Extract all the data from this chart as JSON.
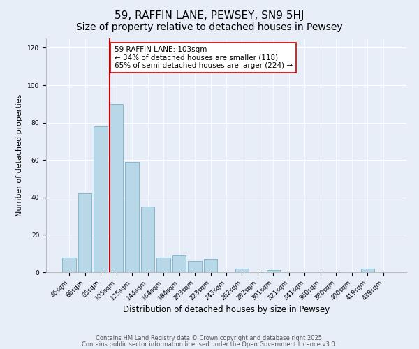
{
  "title": "59, RAFFIN LANE, PEWSEY, SN9 5HJ",
  "subtitle": "Size of property relative to detached houses in Pewsey",
  "xlabel": "Distribution of detached houses by size in Pewsey",
  "ylabel": "Number of detached properties",
  "categories": [
    "46sqm",
    "66sqm",
    "85sqm",
    "105sqm",
    "125sqm",
    "144sqm",
    "164sqm",
    "184sqm",
    "203sqm",
    "223sqm",
    "243sqm",
    "262sqm",
    "282sqm",
    "301sqm",
    "321sqm",
    "341sqm",
    "360sqm",
    "380sqm",
    "400sqm",
    "419sqm",
    "439sqm"
  ],
  "values": [
    8,
    42,
    78,
    90,
    59,
    35,
    8,
    9,
    6,
    7,
    0,
    2,
    0,
    1,
    0,
    0,
    0,
    0,
    0,
    2,
    0
  ],
  "bar_color": "#b8d8e8",
  "bar_edge_color": "#7ab0cc",
  "vline_index": 3,
  "vline_color": "#cc0000",
  "annotation_text": "59 RAFFIN LANE: 103sqm\n← 34% of detached houses are smaller (118)\n65% of semi-detached houses are larger (224) →",
  "annotation_box_color": "#ffffff",
  "annotation_box_edge": "#cc0000",
  "ylim": [
    0,
    125
  ],
  "yticks": [
    0,
    20,
    40,
    60,
    80,
    100,
    120
  ],
  "background_color": "#e8eef8",
  "footer_line1": "Contains HM Land Registry data © Crown copyright and database right 2025.",
  "footer_line2": "Contains public sector information licensed under the Open Government Licence v3.0.",
  "title_fontsize": 11,
  "xlabel_fontsize": 8.5,
  "ylabel_fontsize": 8,
  "tick_fontsize": 6.5,
  "annotation_fontsize": 7.5,
  "footer_fontsize": 6
}
